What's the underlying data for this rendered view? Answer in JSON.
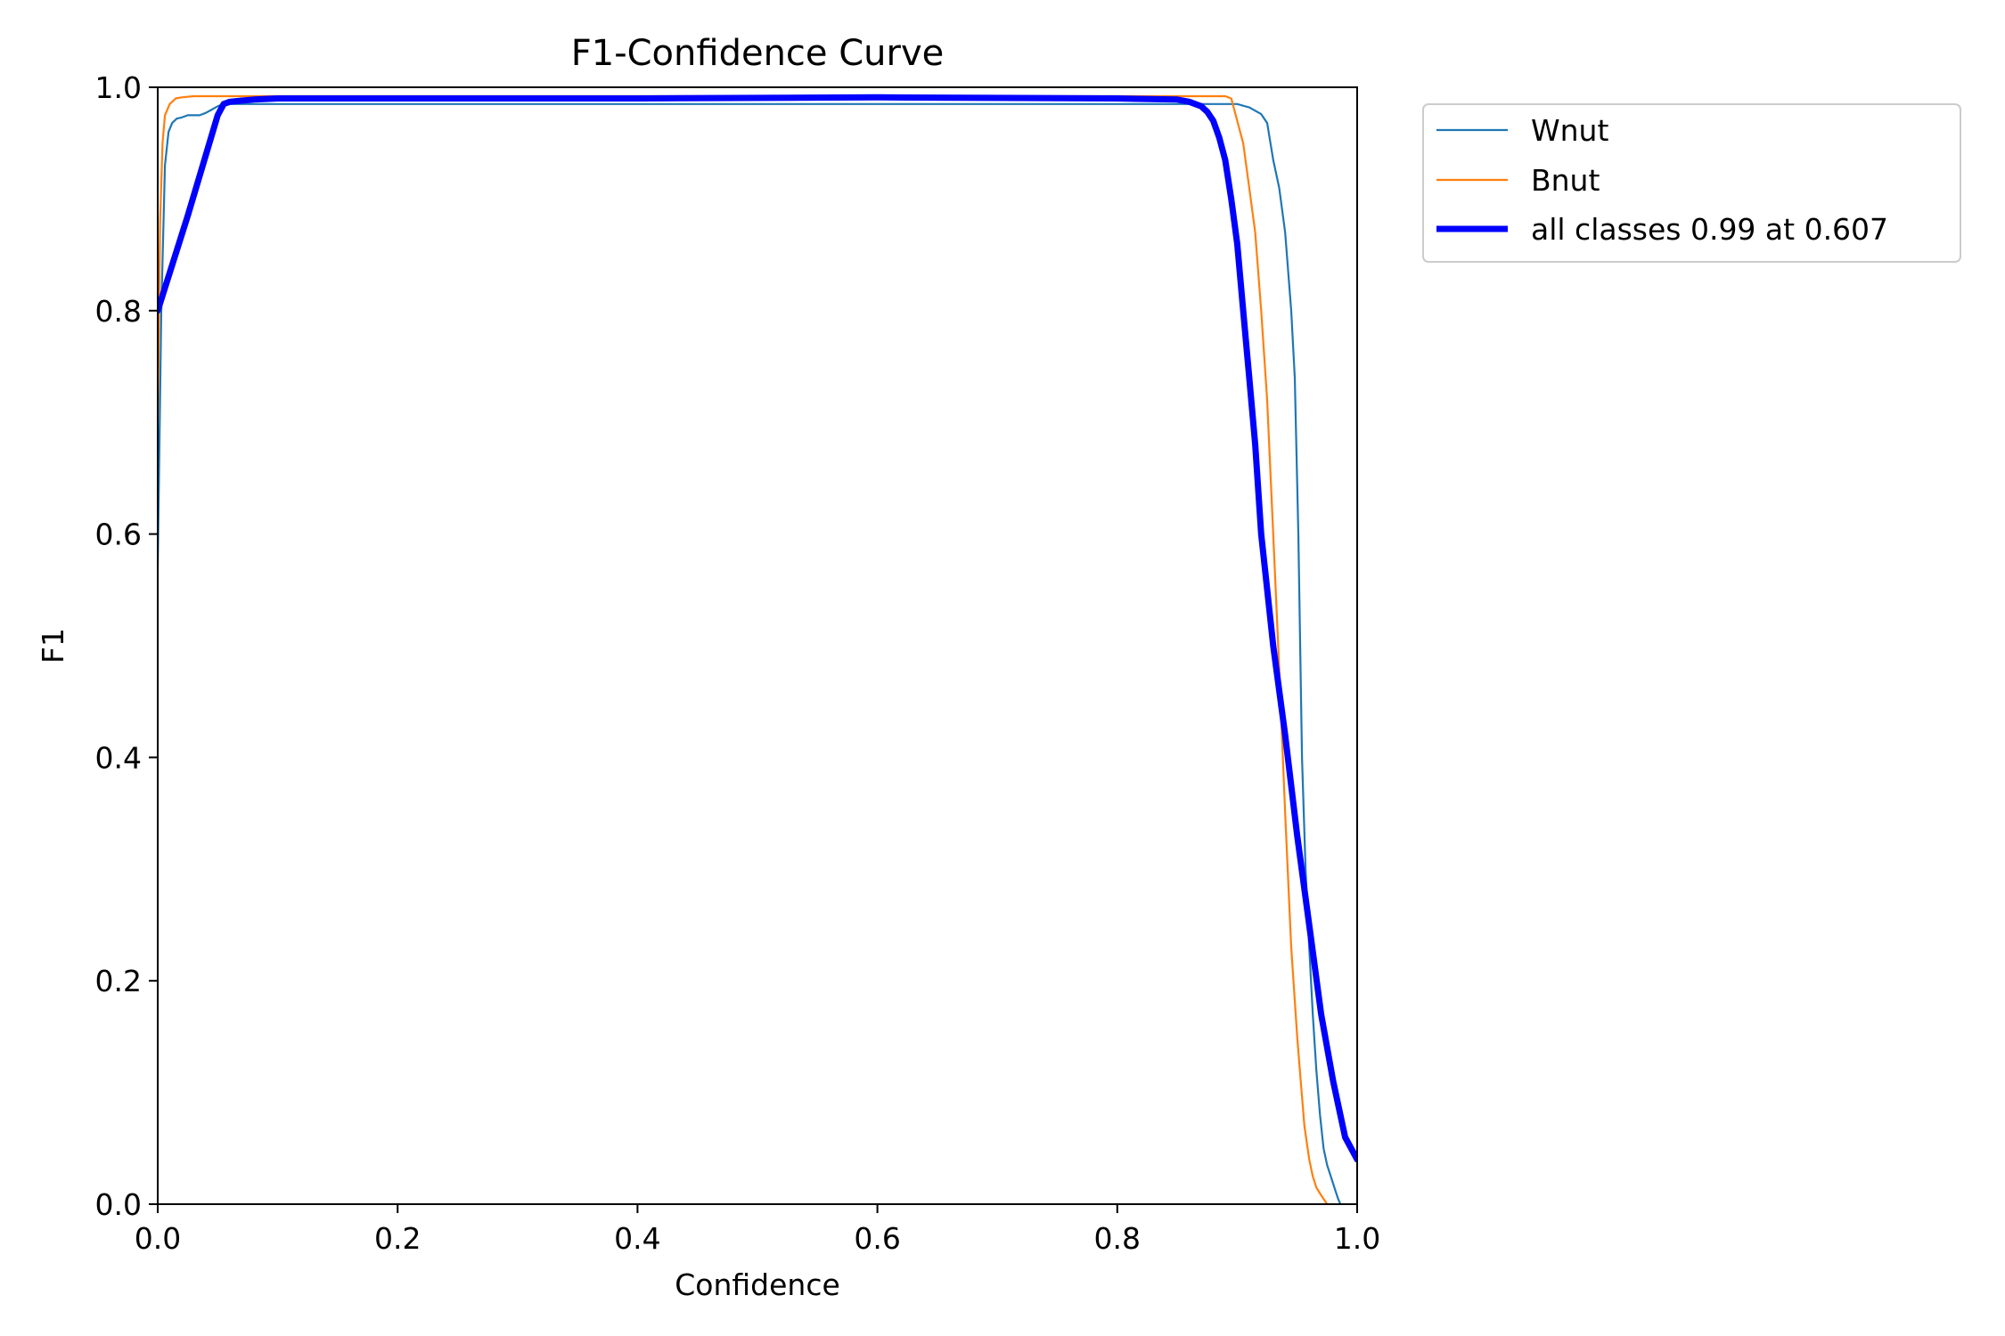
{
  "chart_data": {
    "type": "line",
    "title": "F1-Confidence Curve",
    "xlabel": "Confidence",
    "ylabel": "F1",
    "xlim": [
      0,
      1
    ],
    "ylim": [
      0,
      1
    ],
    "xticks": [
      "0.0",
      "0.2",
      "0.4",
      "0.6",
      "0.8",
      "1.0"
    ],
    "yticks": [
      "0.0",
      "0.2",
      "0.4",
      "0.6",
      "0.8",
      "1.0"
    ],
    "grid": false,
    "legend_placement": "outside-top-right",
    "series": [
      {
        "name": "Wnut",
        "color": "#1f77b4",
        "width": 2.2,
        "x": [
          0.0,
          0.003,
          0.006,
          0.009,
          0.012,
          0.016,
          0.02,
          0.025,
          0.03,
          0.035,
          0.04,
          0.045,
          0.05,
          0.055,
          0.06,
          0.07,
          0.08,
          0.1,
          0.2,
          0.4,
          0.6,
          0.8,
          0.88,
          0.9,
          0.91,
          0.92,
          0.925,
          0.93,
          0.935,
          0.94,
          0.945,
          0.948,
          0.951,
          0.954,
          0.957,
          0.96,
          0.963,
          0.966,
          0.969,
          0.972,
          0.975,
          0.978,
          0.981,
          0.984,
          0.986
        ],
        "y": [
          0.57,
          0.8,
          0.93,
          0.96,
          0.968,
          0.972,
          0.973,
          0.975,
          0.975,
          0.975,
          0.977,
          0.98,
          0.983,
          0.985,
          0.985,
          0.985,
          0.985,
          0.985,
          0.985,
          0.985,
          0.985,
          0.985,
          0.985,
          0.985,
          0.982,
          0.976,
          0.968,
          0.935,
          0.91,
          0.87,
          0.8,
          0.74,
          0.6,
          0.4,
          0.3,
          0.23,
          0.17,
          0.12,
          0.08,
          0.05,
          0.035,
          0.025,
          0.015,
          0.005,
          0.0
        ]
      },
      {
        "name": "Bnut",
        "color": "#ff7f0e",
        "width": 2.2,
        "x": [
          0.0,
          0.002,
          0.004,
          0.006,
          0.01,
          0.015,
          0.02,
          0.03,
          0.05,
          0.1,
          0.2,
          0.4,
          0.6,
          0.8,
          0.87,
          0.89,
          0.895,
          0.9,
          0.905,
          0.91,
          0.915,
          0.92,
          0.925,
          0.93,
          0.935,
          0.94,
          0.945,
          0.95,
          0.953,
          0.956,
          0.96,
          0.963,
          0.966,
          0.97,
          0.975,
          0.978
        ],
        "y": [
          0.7,
          0.88,
          0.95,
          0.975,
          0.985,
          0.99,
          0.991,
          0.992,
          0.992,
          0.992,
          0.992,
          0.992,
          0.992,
          0.992,
          0.992,
          0.992,
          0.99,
          0.97,
          0.95,
          0.91,
          0.87,
          0.8,
          0.72,
          0.6,
          0.48,
          0.35,
          0.23,
          0.15,
          0.11,
          0.07,
          0.04,
          0.025,
          0.015,
          0.008,
          0.0,
          0.0
        ]
      },
      {
        "name": "all classes 0.99 at 0.607",
        "color": "#0000ff",
        "width": 7,
        "x": [
          0.0,
          0.025,
          0.05,
          0.055,
          0.06,
          0.07,
          0.08,
          0.1,
          0.2,
          0.4,
          0.6,
          0.8,
          0.85,
          0.86,
          0.87,
          0.875,
          0.88,
          0.885,
          0.89,
          0.895,
          0.9,
          0.905,
          0.91,
          0.915,
          0.92,
          0.93,
          0.94,
          0.95,
          0.96,
          0.97,
          0.98,
          0.99,
          1.0
        ],
        "y": [
          0.8,
          0.885,
          0.975,
          0.985,
          0.987,
          0.988,
          0.989,
          0.99,
          0.99,
          0.99,
          0.991,
          0.99,
          0.989,
          0.987,
          0.983,
          0.978,
          0.97,
          0.955,
          0.935,
          0.9,
          0.86,
          0.8,
          0.74,
          0.68,
          0.6,
          0.5,
          0.42,
          0.33,
          0.25,
          0.17,
          0.11,
          0.06,
          0.04
        ]
      }
    ]
  }
}
